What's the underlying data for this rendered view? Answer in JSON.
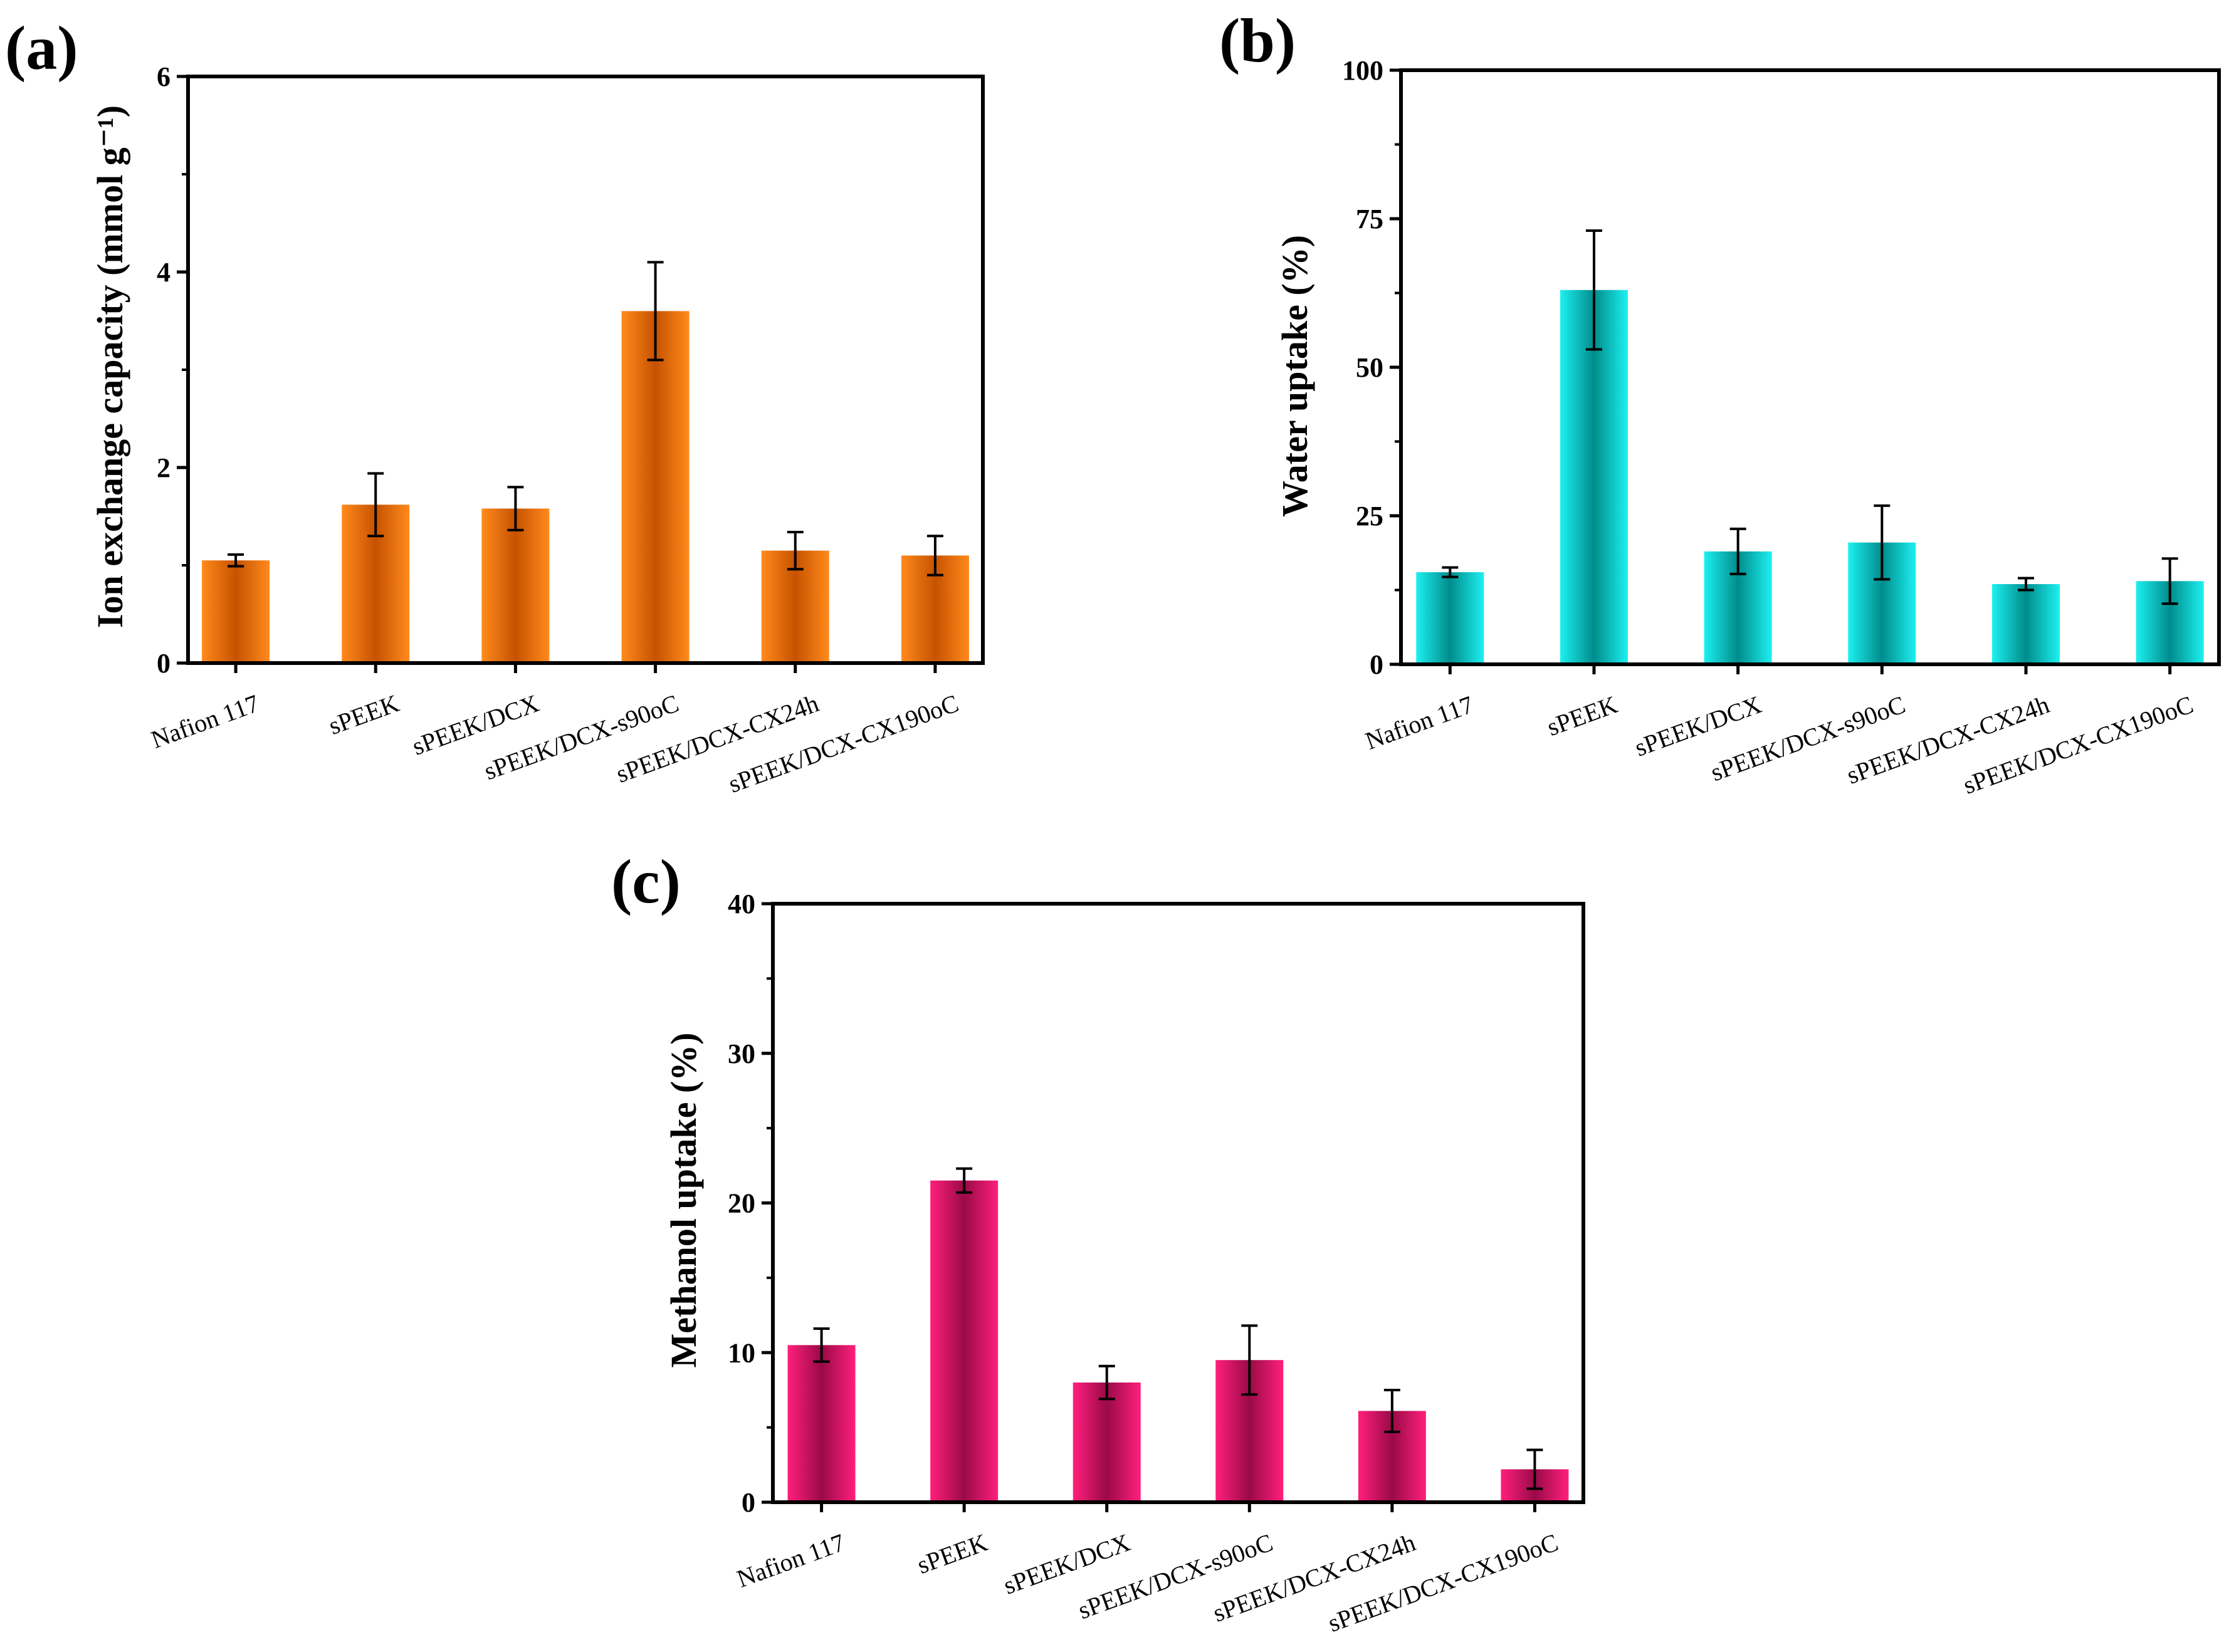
{
  "figure": {
    "panels": [
      "(a)",
      "(b)",
      "(c)"
    ]
  },
  "chart_data": [
    {
      "type": "bar",
      "panel_label": "(a)",
      "title": "",
      "xlabel": "",
      "ylabel": "Ion exchange capacity (mmol g⁻¹)",
      "categories": [
        "Nafion 117",
        "sPEEK",
        "sPEEK/DCX",
        "sPEEK/DCX-s90oC",
        "sPEEK/DCX-CX24h",
        "sPEEK/DCX-CX190oC"
      ],
      "values": [
        1.05,
        1.62,
        1.58,
        3.6,
        1.15,
        1.1
      ],
      "errors": [
        0.06,
        0.32,
        0.22,
        0.5,
        0.19,
        0.2
      ],
      "ylim": [
        0,
        6
      ],
      "yticks": [
        0,
        2,
        4,
        6
      ],
      "color": "#ff7f00",
      "grid": false
    },
    {
      "type": "bar",
      "panel_label": "(b)",
      "title": "",
      "xlabel": "",
      "ylabel": "Water uptake (%)",
      "categories": [
        "Nafion 117",
        "sPEEK",
        "sPEEK/DCX",
        "sPEEK/DCX-s90oC",
        "sPEEK/DCX-CX24h",
        "sPEEK/DCX-CX190oC"
      ],
      "values": [
        15.5,
        63,
        19,
        20.5,
        13.5,
        14
      ],
      "errors": [
        0.8,
        10,
        3.8,
        6.2,
        1.0,
        3.8
      ],
      "ylim": [
        0,
        100
      ],
      "yticks": [
        0,
        25,
        50,
        75,
        100
      ],
      "color": "#00e6e6",
      "grid": false
    },
    {
      "type": "bar",
      "panel_label": "(c)",
      "title": "",
      "xlabel": "",
      "ylabel": "Methanol uptake (%)",
      "categories": [
        "Nafion 117",
        "sPEEK",
        "sPEEK/DCX",
        "sPEEK/DCX-s90oC",
        "sPEEK/DCX-CX24h",
        "sPEEK/DCX-CX190oC"
      ],
      "values": [
        10.5,
        21.5,
        8,
        9.5,
        6.1,
        2.2
      ],
      "errors": [
        1.1,
        0.8,
        1.1,
        2.3,
        1.4,
        1.3
      ],
      "ylim": [
        0,
        40
      ],
      "yticks": [
        0,
        10,
        20,
        30,
        40
      ],
      "color": "#ff0a6e",
      "grid": false
    }
  ]
}
